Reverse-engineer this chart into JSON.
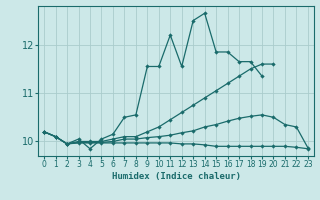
{
  "xlabel": "Humidex (Indice chaleur)",
  "background_color": "#cce8e8",
  "grid_color": "#aacccc",
  "line_color": "#1a6b6b",
  "xlim": [
    -0.5,
    23.5
  ],
  "ylim": [
    9.7,
    12.8
  ],
  "yticks": [
    10,
    11,
    12
  ],
  "xticks": [
    0,
    1,
    2,
    3,
    4,
    5,
    6,
    7,
    8,
    9,
    10,
    11,
    12,
    13,
    14,
    15,
    16,
    17,
    18,
    19,
    20,
    21,
    22,
    23
  ],
  "series": [
    [
      10.2,
      10.1,
      9.95,
      10.05,
      9.85,
      10.05,
      10.15,
      10.5,
      10.55,
      11.55,
      11.55,
      12.2,
      11.55,
      12.5,
      12.65,
      11.85,
      11.85,
      11.65,
      11.65,
      11.35,
      null,
      null,
      null,
      null
    ],
    [
      10.2,
      10.1,
      9.95,
      10.0,
      10.0,
      10.0,
      10.05,
      10.1,
      10.1,
      10.2,
      10.3,
      10.45,
      10.6,
      10.75,
      10.9,
      11.05,
      11.2,
      11.35,
      11.5,
      11.6,
      11.6,
      null,
      null,
      null
    ],
    [
      10.2,
      10.1,
      9.95,
      9.98,
      9.98,
      9.98,
      10.0,
      10.05,
      10.05,
      10.08,
      10.1,
      10.13,
      10.18,
      10.22,
      10.3,
      10.35,
      10.42,
      10.48,
      10.52,
      10.55,
      10.5,
      10.35,
      10.3,
      9.87
    ],
    [
      10.2,
      10.1,
      9.95,
      9.97,
      9.97,
      9.97,
      9.97,
      9.97,
      9.97,
      9.97,
      9.97,
      9.97,
      9.95,
      9.95,
      9.93,
      9.9,
      9.9,
      9.9,
      9.9,
      9.9,
      9.9,
      9.9,
      9.88,
      9.85
    ]
  ]
}
